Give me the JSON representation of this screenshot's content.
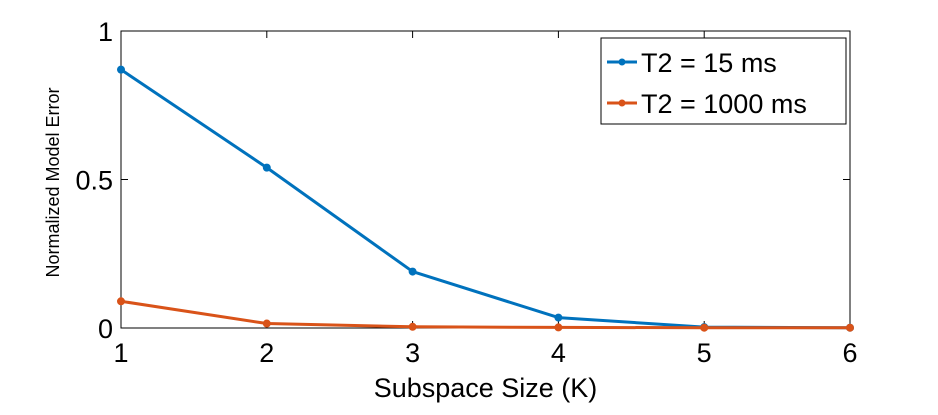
{
  "chart_data": {
    "type": "line",
    "xlabel": "Subspace Size (K)",
    "ylabel": "Normalized Model Error",
    "xlim": [
      1,
      6
    ],
    "ylim": [
      0,
      1
    ],
    "x_ticks": [
      "1",
      "2",
      "3",
      "4",
      "5",
      "6"
    ],
    "y_ticks": [
      "0",
      "0.5",
      "1"
    ],
    "grid": false,
    "legend_position": "top-right",
    "x": [
      1,
      2,
      3,
      4,
      5,
      6
    ],
    "series": [
      {
        "name": "T2 = 15 ms",
        "color": "#0072bd",
        "values": [
          0.87,
          0.54,
          0.19,
          0.035,
          0.003,
          0.001
        ]
      },
      {
        "name": "T2 = 1000 ms",
        "color": "#d95319",
        "values": [
          0.09,
          0.015,
          0.004,
          0.002,
          0.001,
          0.001
        ]
      }
    ]
  }
}
